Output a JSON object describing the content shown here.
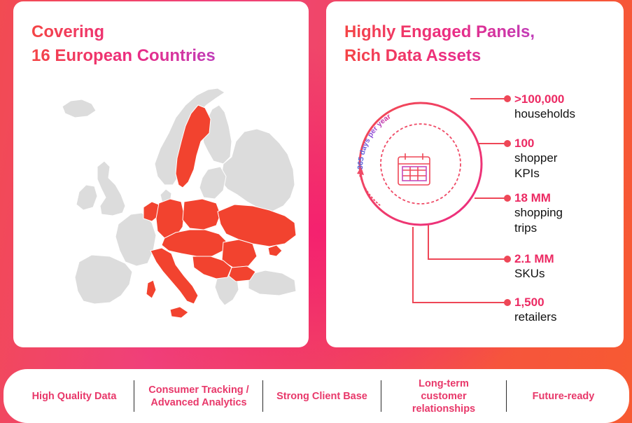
{
  "left_panel": {
    "title_line1": "Covering",
    "title_line2": "16 European Countries"
  },
  "right_panel": {
    "title_line1": "Highly Engaged Panels,",
    "title_line2": "Rich Data Assets",
    "ring_label": "365 days per year",
    "stats": [
      {
        "value": ">100,000",
        "label_lines": [
          "households"
        ]
      },
      {
        "value": "100",
        "label_lines": [
          "shopper",
          "KPIs"
        ]
      },
      {
        "value": "18 MM",
        "label_lines": [
          "shopping",
          "trips"
        ]
      },
      {
        "value": "2.1 MM",
        "label_lines": [
          "SKUs"
        ]
      },
      {
        "value": "1,500",
        "label_lines": [
          "retailers"
        ]
      }
    ]
  },
  "bottom_bar": {
    "pillars": [
      {
        "lines": [
          "High Quality Data"
        ]
      },
      {
        "lines": [
          "Consumer Tracking /",
          "Advanced Analytics"
        ]
      },
      {
        "lines": [
          "Strong Client Base"
        ]
      },
      {
        "lines": [
          "Long-term",
          "customer",
          "relationships"
        ]
      },
      {
        "lines": [
          "Future-ready"
        ]
      }
    ]
  },
  "colors": {
    "accent": "#ec2a63",
    "map_highlight": "#f2432f",
    "map_base": "#dcdcdc"
  }
}
